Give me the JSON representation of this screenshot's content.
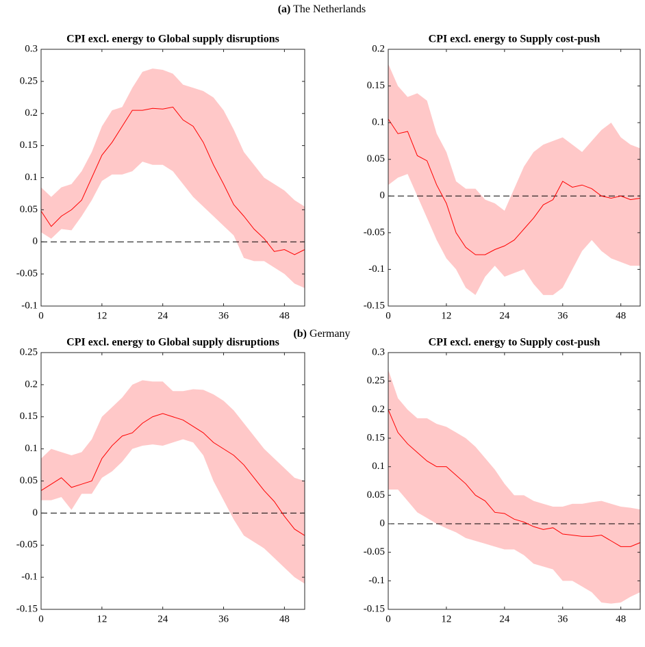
{
  "sections": [
    {
      "tag": "(a)",
      "title": "The Netherlands"
    },
    {
      "tag": "(b)",
      "title": "Germany"
    }
  ],
  "chart_data": [
    {
      "type": "line",
      "title": "CPI excl. energy to Global supply disruptions",
      "x": [
        0,
        2,
        4,
        6,
        8,
        10,
        12,
        14,
        16,
        18,
        20,
        22,
        24,
        26,
        28,
        30,
        32,
        34,
        36,
        38,
        40,
        42,
        44,
        46,
        48,
        50,
        52
      ],
      "xlim": [
        0,
        52
      ],
      "xticks": [
        0,
        12,
        24,
        36,
        48
      ],
      "ylim": [
        -0.1,
        0.3
      ],
      "yticks": [
        -0.1,
        -0.05,
        0,
        0.05,
        0.1,
        0.15,
        0.2,
        0.25,
        0.3
      ],
      "series": [
        {
          "color": "#ff0000",
          "values": [
            0.048,
            0.024,
            0.04,
            0.05,
            0.065,
            0.1,
            0.135,
            0.155,
            0.18,
            0.205,
            0.205,
            0.208,
            0.207,
            0.21,
            0.19,
            0.18,
            0.155,
            0.12,
            0.09,
            0.058,
            0.04,
            0.02,
            0.005,
            -0.015,
            -0.012,
            -0.02,
            -0.012
          ]
        }
      ],
      "band_upper": [
        0.085,
        0.07,
        0.085,
        0.09,
        0.11,
        0.14,
        0.18,
        0.205,
        0.21,
        0.24,
        0.265,
        0.27,
        0.268,
        0.262,
        0.245,
        0.24,
        0.235,
        0.225,
        0.205,
        0.175,
        0.14,
        0.12,
        0.1,
        0.09,
        0.08,
        0.065,
        0.055
      ],
      "band_lower": [
        0.015,
        0.005,
        0.02,
        0.018,
        0.04,
        0.065,
        0.095,
        0.105,
        0.105,
        0.11,
        0.125,
        0.12,
        0.12,
        0.11,
        0.09,
        0.07,
        0.055,
        0.04,
        0.025,
        0.01,
        -0.025,
        -0.03,
        -0.03,
        -0.04,
        -0.05,
        -0.065,
        -0.072
      ],
      "band_color": "#ffc8c8",
      "hline": 0
    },
    {
      "type": "line",
      "title": "CPI excl. energy to Supply cost-push",
      "x": [
        0,
        2,
        4,
        6,
        8,
        10,
        12,
        14,
        16,
        18,
        20,
        22,
        24,
        26,
        28,
        30,
        32,
        34,
        36,
        38,
        40,
        42,
        44,
        46,
        48,
        50,
        52
      ],
      "xlim": [
        0,
        52
      ],
      "xticks": [
        0,
        12,
        24,
        36,
        48
      ],
      "ylim": [
        -0.15,
        0.2
      ],
      "yticks": [
        -0.15,
        -0.1,
        -0.05,
        0,
        0.05,
        0.1,
        0.15,
        0.2
      ],
      "series": [
        {
          "color": "#ff0000",
          "values": [
            0.105,
            0.085,
            0.088,
            0.055,
            0.048,
            0.015,
            -0.01,
            -0.05,
            -0.07,
            -0.08,
            -0.08,
            -0.073,
            -0.068,
            -0.06,
            -0.045,
            -0.03,
            -0.012,
            -0.005,
            0.02,
            0.012,
            0.015,
            0.01,
            0,
            -0.003,
            0,
            -0.005,
            -0.003
          ]
        }
      ],
      "band_upper": [
        0.18,
        0.15,
        0.135,
        0.14,
        0.13,
        0.085,
        0.06,
        0.02,
        0.01,
        0.01,
        -0.005,
        -0.01,
        -0.02,
        0.01,
        0.04,
        0.06,
        0.07,
        0.075,
        0.08,
        0.07,
        0.06,
        0.075,
        0.09,
        0.1,
        0.08,
        0.07,
        0.065
      ],
      "band_lower": [
        0.015,
        0.025,
        0.03,
        0,
        -0.03,
        -0.06,
        -0.085,
        -0.1,
        -0.125,
        -0.135,
        -0.11,
        -0.095,
        -0.11,
        -0.105,
        -0.1,
        -0.12,
        -0.135,
        -0.135,
        -0.125,
        -0.1,
        -0.075,
        -0.06,
        -0.075,
        -0.085,
        -0.09,
        -0.095,
        -0.095
      ],
      "band_color": "#ffc8c8",
      "hline": 0
    },
    {
      "type": "line",
      "title": "CPI excl. energy to Global supply disruptions",
      "x": [
        0,
        2,
        4,
        6,
        8,
        10,
        12,
        14,
        16,
        18,
        20,
        22,
        24,
        26,
        28,
        30,
        32,
        34,
        36,
        38,
        40,
        42,
        44,
        46,
        48,
        50,
        52
      ],
      "xlim": [
        0,
        52
      ],
      "xticks": [
        0,
        12,
        24,
        36,
        48
      ],
      "ylim": [
        -0.15,
        0.25
      ],
      "yticks": [
        -0.15,
        -0.1,
        -0.05,
        0,
        0.05,
        0.1,
        0.15,
        0.2,
        0.25
      ],
      "series": [
        {
          "color": "#ff0000",
          "values": [
            0.035,
            0.045,
            0.055,
            0.04,
            0.045,
            0.05,
            0.085,
            0.105,
            0.12,
            0.125,
            0.14,
            0.15,
            0.155,
            0.15,
            0.145,
            0.135,
            0.125,
            0.11,
            0.1,
            0.09,
            0.075,
            0.055,
            0.035,
            0.018,
            -0.005,
            -0.025,
            -0.035
          ]
        }
      ],
      "band_upper": [
        0.085,
        0.1,
        0.095,
        0.09,
        0.095,
        0.115,
        0.15,
        0.165,
        0.18,
        0.2,
        0.207,
        0.205,
        0.205,
        0.19,
        0.19,
        0.193,
        0.192,
        0.185,
        0.175,
        0.16,
        0.14,
        0.12,
        0.1,
        0.085,
        0.07,
        0.055,
        0.05
      ],
      "band_lower": [
        0.02,
        0.02,
        0.025,
        0.005,
        0.03,
        0.03,
        0.055,
        0.065,
        0.08,
        0.1,
        0.105,
        0.107,
        0.105,
        0.11,
        0.115,
        0.11,
        0.09,
        0.05,
        0.02,
        -0.01,
        -0.035,
        -0.045,
        -0.055,
        -0.07,
        -0.085,
        -0.1,
        -0.11
      ],
      "band_color": "#ffc8c8",
      "hline": 0
    },
    {
      "type": "line",
      "title": "CPI excl. energy to Supply cost-push",
      "x": [
        0,
        2,
        4,
        6,
        8,
        10,
        12,
        14,
        16,
        18,
        20,
        22,
        24,
        26,
        28,
        30,
        32,
        34,
        36,
        38,
        40,
        42,
        44,
        46,
        48,
        50,
        52
      ],
      "xlim": [
        0,
        52
      ],
      "xticks": [
        0,
        12,
        24,
        36,
        48
      ],
      "ylim": [
        -0.15,
        0.3
      ],
      "yticks": [
        -0.15,
        -0.1,
        -0.05,
        0,
        0.05,
        0.1,
        0.15,
        0.2,
        0.25,
        0.3
      ],
      "series": [
        {
          "color": "#ff0000",
          "values": [
            0.2,
            0.16,
            0.14,
            0.125,
            0.11,
            0.1,
            0.1,
            0.085,
            0.07,
            0.05,
            0.04,
            0.02,
            0.018,
            0.008,
            0.003,
            -0.005,
            -0.01,
            -0.007,
            -0.018,
            -0.02,
            -0.022,
            -0.022,
            -0.02,
            -0.03,
            -0.04,
            -0.04,
            -0.033
          ]
        }
      ],
      "band_upper": [
        0.27,
        0.22,
        0.2,
        0.185,
        0.185,
        0.175,
        0.17,
        0.16,
        0.15,
        0.135,
        0.115,
        0.095,
        0.07,
        0.05,
        0.05,
        0.04,
        0.035,
        0.03,
        0.03,
        0.035,
        0.035,
        0.038,
        0.04,
        0.035,
        0.03,
        0.028,
        0.025
      ],
      "band_lower": [
        0.06,
        0.06,
        0.04,
        0.02,
        0.01,
        0,
        -0.008,
        -0.015,
        -0.025,
        -0.03,
        -0.035,
        -0.04,
        -0.045,
        -0.045,
        -0.055,
        -0.07,
        -0.075,
        -0.08,
        -0.1,
        -0.1,
        -0.11,
        -0.12,
        -0.138,
        -0.14,
        -0.138,
        -0.128,
        -0.12
      ],
      "band_color": "#ffc8c8",
      "hline": 0
    }
  ]
}
